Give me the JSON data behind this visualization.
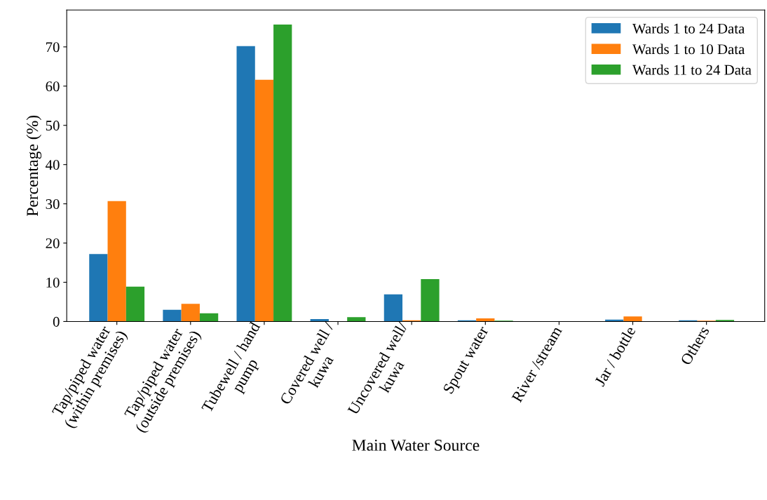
{
  "chart_data": {
    "type": "bar",
    "xlabel": "Main Water Source",
    "ylabel": "Percentage (%)",
    "categories": [
      "Tap/piped water\n(within premises)",
      "Tap/piped water\n(outside premises)",
      "Tubewell / hand\npump",
      "Covered well /\nkuwa",
      "Uncovered well/\nkuwa",
      "Spout water",
      "River /stream",
      "Jar / bottle",
      "Others"
    ],
    "series": [
      {
        "name": "Wards 1 to 24 Data",
        "color": "#1f77b4",
        "values": [
          17.2,
          3.0,
          70.2,
          0.6,
          6.9,
          0.3,
          null,
          0.5,
          0.3
        ]
      },
      {
        "name": "Wards 1 to 10 Data",
        "color": "#ff7f0e",
        "values": [
          30.7,
          4.5,
          61.6,
          null,
          0.3,
          0.8,
          null,
          1.3,
          0.2
        ]
      },
      {
        "name": "Wards 11 to 24 Data",
        "color": "#2ca02c",
        "values": [
          8.9,
          2.1,
          75.7,
          1.1,
          10.8,
          0.2,
          null,
          null,
          0.4
        ]
      }
    ],
    "ylim": [
      0,
      79.4
    ],
    "yticks": [
      0,
      10,
      20,
      30,
      40,
      50,
      60,
      70
    ],
    "grid": false,
    "legend": "top right"
  }
}
